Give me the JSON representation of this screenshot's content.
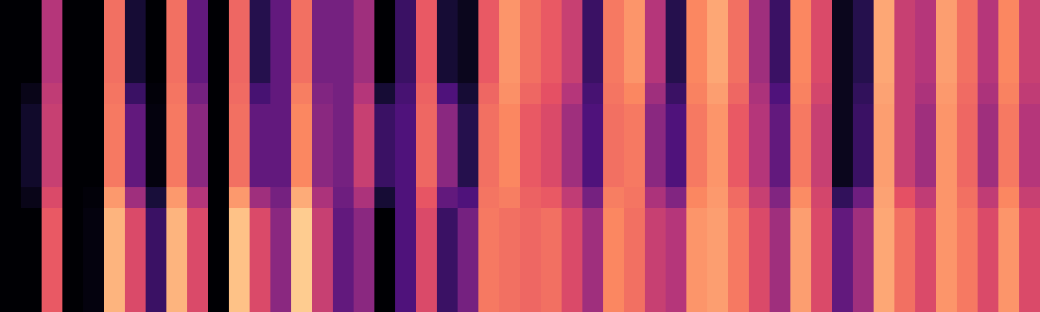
{
  "chart_data": {
    "type": "heatmap",
    "tick_labels": false,
    "zlim": [
      0,
      100
    ],
    "z": [
      [
        0,
        0,
        50,
        0,
        0,
        70,
        10,
        0,
        70,
        30,
        0,
        68,
        15,
        30,
        70,
        35,
        35,
        45,
        0,
        20,
        65,
        10,
        5,
        65,
        78,
        70,
        65,
        55,
        20,
        72,
        78,
        50,
        15,
        75,
        82,
        70,
        45,
        20,
        75,
        60,
        5,
        15,
        82,
        55,
        50,
        80,
        70,
        50,
        75,
        55
      ],
      [
        0,
        0,
        50,
        0,
        0,
        70,
        10,
        0,
        70,
        30,
        0,
        68,
        15,
        30,
        70,
        35,
        35,
        45,
        0,
        20,
        65,
        10,
        5,
        65,
        78,
        70,
        65,
        55,
        20,
        72,
        78,
        50,
        15,
        75,
        82,
        70,
        45,
        20,
        75,
        60,
        5,
        15,
        82,
        55,
        50,
        80,
        70,
        50,
        75,
        55
      ],
      [
        0,
        0,
        50,
        0,
        0,
        70,
        10,
        0,
        70,
        30,
        0,
        68,
        15,
        30,
        70,
        35,
        35,
        45,
        0,
        20,
        65,
        10,
        5,
        65,
        78,
        70,
        65,
        55,
        20,
        72,
        78,
        50,
        15,
        75,
        82,
        70,
        45,
        20,
        75,
        60,
        5,
        15,
        82,
        55,
        50,
        80,
        70,
        50,
        75,
        55
      ],
      [
        0,
        0,
        50,
        0,
        0,
        70,
        10,
        0,
        70,
        30,
        0,
        68,
        15,
        30,
        70,
        35,
        35,
        45,
        0,
        20,
        65,
        10,
        5,
        65,
        78,
        70,
        65,
        55,
        20,
        72,
        78,
        50,
        15,
        75,
        82,
        70,
        45,
        20,
        75,
        60,
        5,
        15,
        82,
        55,
        50,
        80,
        70,
        50,
        75,
        55
      ],
      [
        0,
        4,
        53,
        0,
        0,
        71,
        20,
        1,
        71,
        35,
        0,
        69,
        23,
        30,
        73,
        38,
        35,
        50,
        10,
        23,
        67,
        25,
        10,
        68,
        77,
        68,
        63,
        50,
        23,
        71,
        75,
        45,
        20,
        74,
        80,
        68,
        48,
        25,
        74,
        58,
        5,
        18,
        81,
        55,
        48,
        79,
        69,
        48,
        74,
        53
      ],
      [
        0,
        8,
        55,
        0,
        0,
        72,
        30,
        2,
        72,
        40,
        0,
        70,
        30,
        30,
        75,
        40,
        35,
        55,
        20,
        25,
        68,
        40,
        15,
        70,
        75,
        65,
        60,
        45,
        25,
        70,
        72,
        40,
        25,
        72,
        78,
        65,
        50,
        30,
        72,
        55,
        5,
        20,
        80,
        55,
        45,
        78,
        68,
        45,
        72,
        50
      ],
      [
        0,
        8,
        55,
        0,
        0,
        72,
        30,
        2,
        72,
        40,
        0,
        70,
        30,
        30,
        75,
        40,
        35,
        55,
        20,
        25,
        68,
        40,
        15,
        70,
        75,
        65,
        60,
        45,
        25,
        70,
        72,
        40,
        25,
        72,
        78,
        65,
        50,
        30,
        72,
        55,
        5,
        20,
        80,
        55,
        45,
        78,
        68,
        45,
        72,
        50
      ],
      [
        0,
        8,
        55,
        0,
        0,
        72,
        30,
        2,
        72,
        40,
        0,
        70,
        30,
        30,
        75,
        40,
        35,
        55,
        20,
        25,
        68,
        40,
        15,
        70,
        75,
        65,
        60,
        45,
        25,
        70,
        72,
        40,
        25,
        72,
        78,
        65,
        50,
        30,
        72,
        55,
        5,
        20,
        80,
        55,
        45,
        78,
        68,
        45,
        72,
        50
      ],
      [
        0,
        8,
        55,
        0,
        0,
        72,
        30,
        2,
        72,
        40,
        0,
        70,
        30,
        30,
        75,
        40,
        35,
        55,
        20,
        25,
        68,
        40,
        15,
        70,
        75,
        65,
        60,
        45,
        25,
        70,
        72,
        40,
        25,
        72,
        78,
        65,
        50,
        30,
        72,
        55,
        5,
        20,
        80,
        55,
        45,
        78,
        68,
        45,
        72,
        50
      ],
      [
        0,
        4,
        60,
        0,
        1,
        79,
        45,
        11,
        79,
        50,
        0,
        79,
        45,
        35,
        83,
        48,
        33,
        48,
        10,
        25,
        64,
        30,
        25,
        71,
        73,
        67,
        65,
        53,
        35,
        73,
        71,
        48,
        38,
        75,
        79,
        69,
        55,
        38,
        76,
        58,
        18,
        33,
        81,
        63,
        53,
        78,
        70,
        53,
        75,
        55
      ],
      [
        0,
        0,
        65,
        0,
        2,
        85,
        60,
        20,
        85,
        60,
        0,
        88,
        60,
        40,
        90,
        55,
        30,
        40,
        0,
        25,
        60,
        20,
        35,
        72,
        70,
        68,
        70,
        60,
        45,
        75,
        70,
        55,
        50,
        78,
        80,
        72,
        60,
        45,
        80,
        60,
        30,
        45,
        82,
        70,
        60,
        78,
        72,
        60,
        78,
        60
      ],
      [
        0,
        0,
        65,
        0,
        2,
        85,
        60,
        20,
        85,
        60,
        0,
        88,
        60,
        40,
        90,
        55,
        30,
        40,
        0,
        25,
        60,
        20,
        35,
        72,
        70,
        68,
        70,
        60,
        45,
        75,
        70,
        55,
        50,
        78,
        80,
        72,
        60,
        45,
        80,
        60,
        30,
        45,
        82,
        70,
        60,
        78,
        72,
        60,
        78,
        60
      ],
      [
        0,
        0,
        65,
        0,
        2,
        85,
        60,
        20,
        85,
        60,
        0,
        88,
        60,
        40,
        90,
        55,
        30,
        40,
        0,
        25,
        60,
        20,
        35,
        72,
        70,
        68,
        70,
        60,
        45,
        75,
        70,
        55,
        50,
        78,
        80,
        72,
        60,
        45,
        80,
        60,
        30,
        45,
        82,
        70,
        60,
        78,
        72,
        60,
        78,
        60
      ],
      [
        0,
        0,
        65,
        0,
        2,
        85,
        60,
        20,
        85,
        60,
        0,
        88,
        60,
        40,
        90,
        55,
        30,
        40,
        0,
        25,
        60,
        20,
        35,
        72,
        70,
        68,
        70,
        60,
        45,
        75,
        70,
        55,
        50,
        78,
        80,
        72,
        60,
        45,
        80,
        60,
        30,
        45,
        82,
        70,
        60,
        78,
        72,
        60,
        78,
        60
      ],
      [
        0,
        0,
        65,
        0,
        2,
        85,
        60,
        20,
        85,
        60,
        0,
        88,
        60,
        40,
        90,
        55,
        30,
        40,
        0,
        25,
        60,
        20,
        35,
        72,
        70,
        68,
        70,
        60,
        45,
        75,
        70,
        55,
        50,
        78,
        80,
        72,
        60,
        45,
        80,
        60,
        30,
        45,
        82,
        70,
        60,
        78,
        72,
        60,
        78,
        60
      ]
    ]
  }
}
